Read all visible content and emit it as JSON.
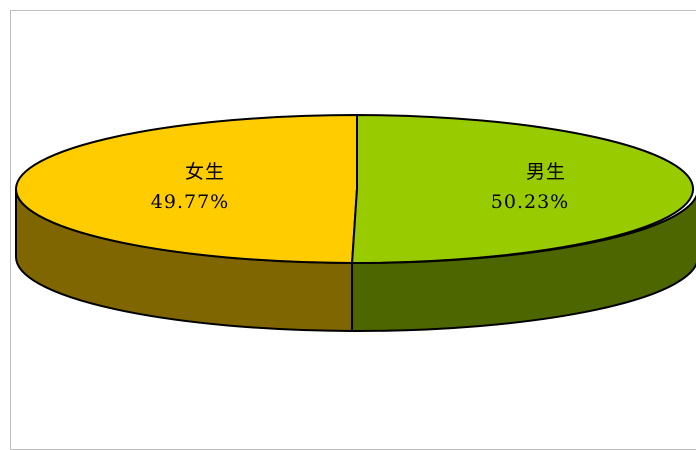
{
  "chart_data": {
    "type": "pie",
    "style": "3d",
    "slices": [
      {
        "name": "女生",
        "value": 49.77,
        "label": "49.77%",
        "top_color": "#FFCC00",
        "side_color": "#806600"
      },
      {
        "name": "男生",
        "value": 50.23,
        "label": "50.23%",
        "top_color": "#99CC00",
        "side_color": "#4D6600"
      }
    ],
    "legend": "none",
    "outline_color": "#000000"
  }
}
